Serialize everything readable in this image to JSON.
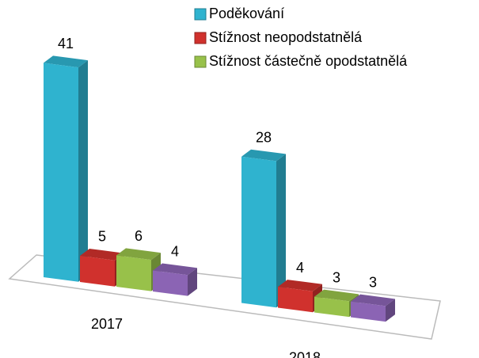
{
  "chart_data": {
    "type": "bar3d",
    "categories": [
      "2017",
      "2018"
    ],
    "series": [
      {
        "name": "Poděkování",
        "color": "#2fb3cf",
        "values": [
          41,
          28
        ]
      },
      {
        "name": "Stížnost neopodstatnělá",
        "color": "#d0312d",
        "values": [
          5,
          4
        ]
      },
      {
        "name": "Stížnost částečně opodstatnělá",
        "color": "#98c14a",
        "values": [
          6,
          3
        ]
      },
      {
        "color": "#8b64b4",
        "values": [
          4,
          3
        ]
      }
    ]
  }
}
